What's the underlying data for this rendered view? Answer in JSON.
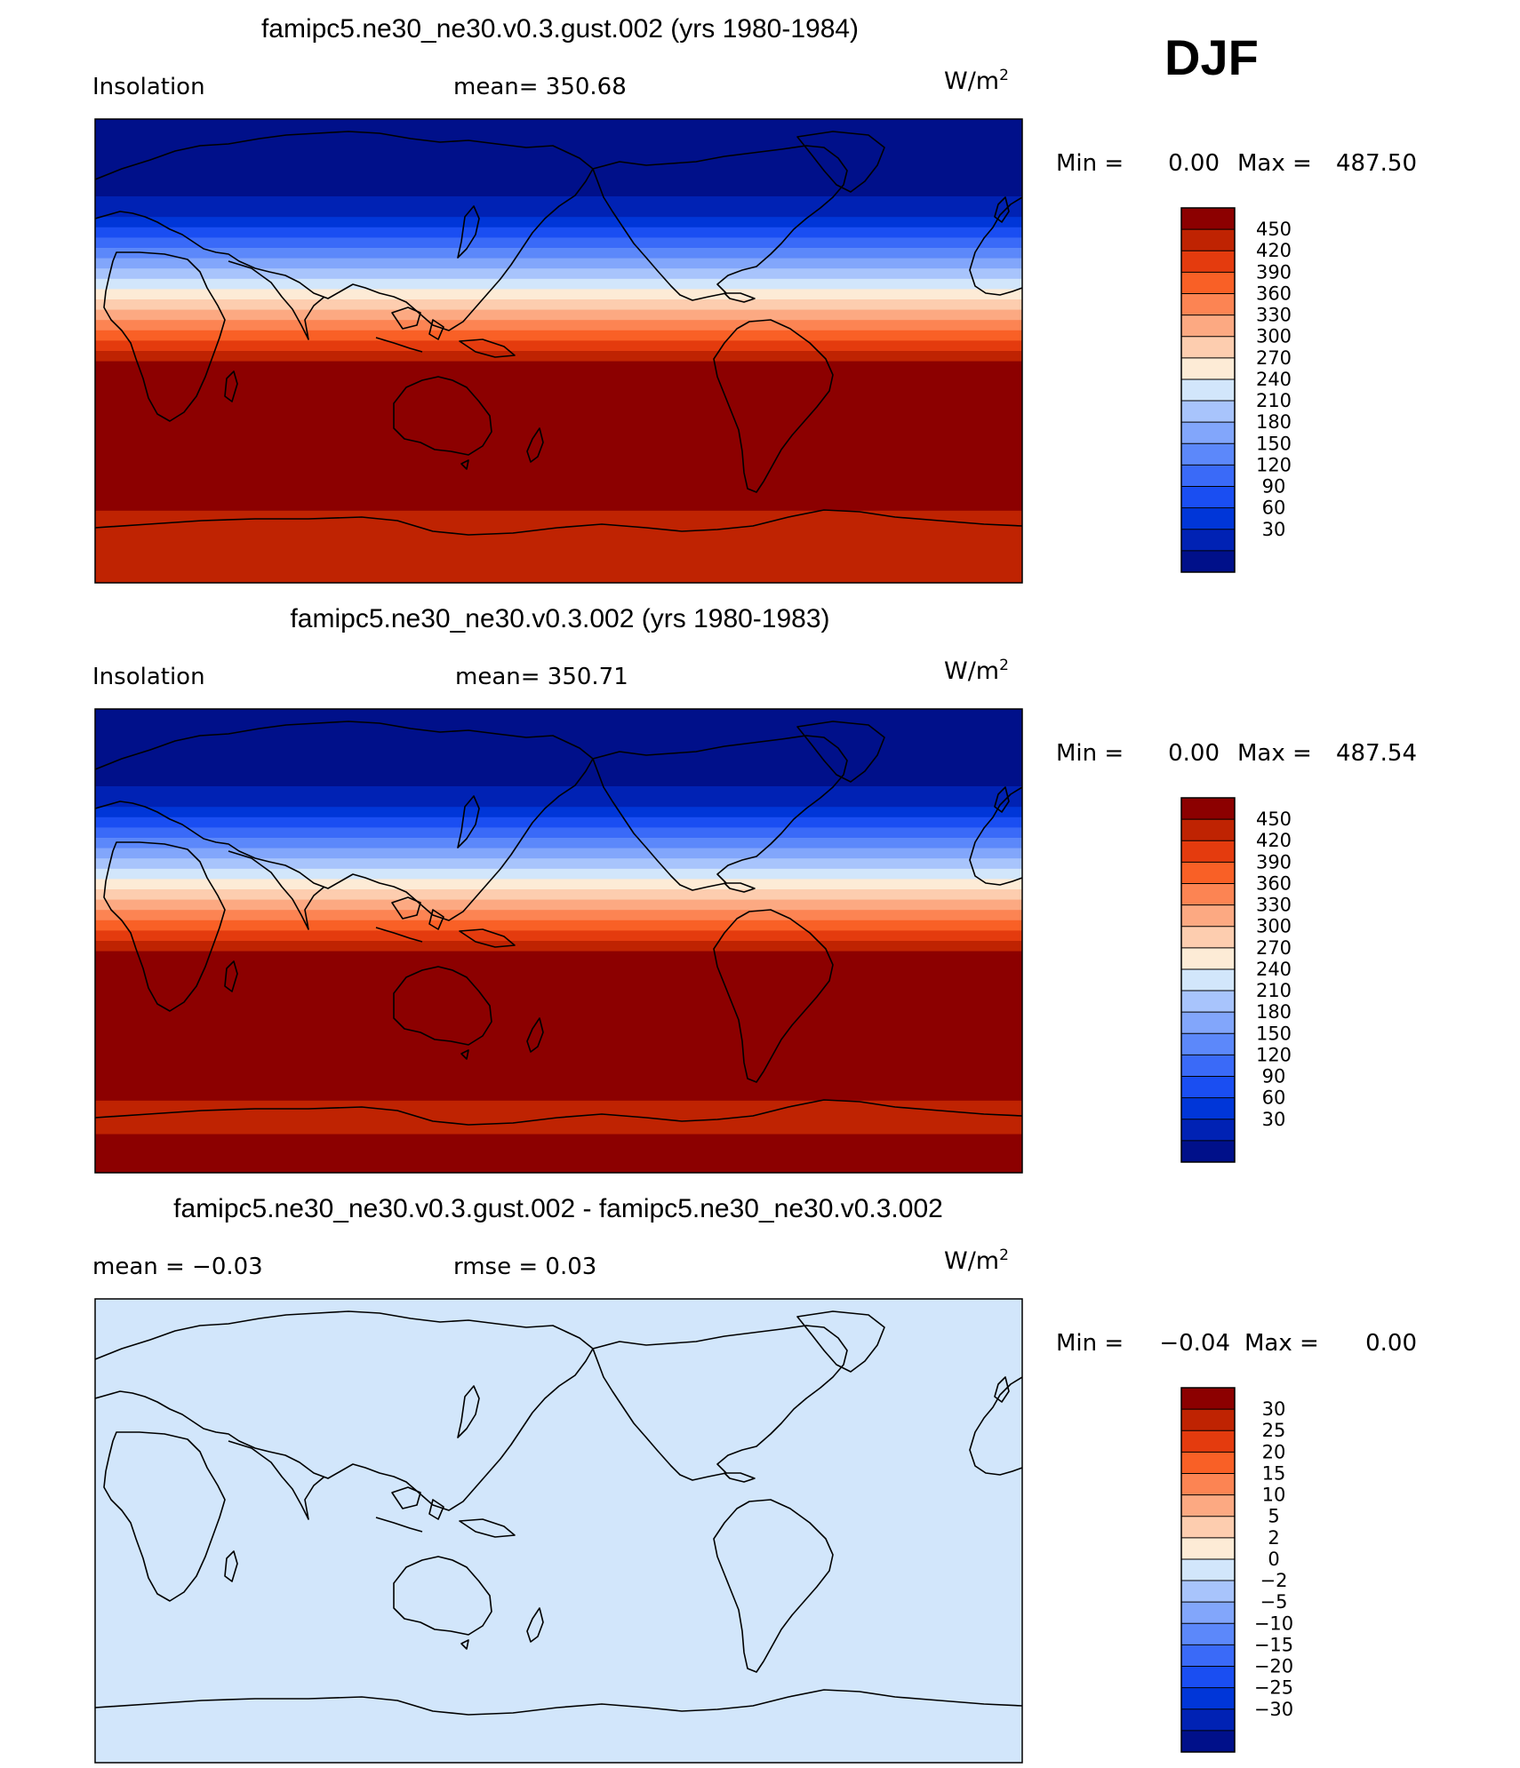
{
  "season_label": "DJF",
  "chart_data": [
    {
      "type": "heatmap",
      "title": "famipc5.ne30_ne30.v0.3.gust.002 (yrs 1980-1984)",
      "variable": "Insolation",
      "mean_text": "mean=  350.68",
      "units": "W/m",
      "units_exp": "2",
      "min_label": "Min  =",
      "min_value": "0.00",
      "max_label": "Max  =",
      "max_value": "487.50",
      "colorbar": {
        "colors": [
          "#00108a",
          "#0022b4",
          "#0036d8",
          "#1a4ef2",
          "#3a6af8",
          "#5c88fa",
          "#82a6fb",
          "#a8c4fc",
          "#d2e6fb",
          "#fdebd6",
          "#fdcdaf",
          "#fca982",
          "#fc8453",
          "#f96026",
          "#e43b0e",
          "#bf2302",
          "#8c0000"
        ],
        "levels": [
          "450",
          "420",
          "390",
          "360",
          "330",
          "300",
          "270",
          "240",
          "210",
          "180",
          "150",
          "120",
          "90",
          "60",
          "30"
        ]
      },
      "lat_bands": [
        {
          "lat": [
            60,
            90
          ],
          "color": "#00108a"
        },
        {
          "lat": [
            52,
            60
          ],
          "color": "#0022b4"
        },
        {
          "lat": [
            48,
            52
          ],
          "color": "#0036d8"
        },
        {
          "lat": [
            44,
            48
          ],
          "color": "#1a4ef2"
        },
        {
          "lat": [
            40,
            44
          ],
          "color": "#3a6af8"
        },
        {
          "lat": [
            36,
            40
          ],
          "color": "#5c88fa"
        },
        {
          "lat": [
            32,
            36
          ],
          "color": "#82a6fb"
        },
        {
          "lat": [
            28,
            32
          ],
          "color": "#a8c4fc"
        },
        {
          "lat": [
            24,
            28
          ],
          "color": "#d2e6fb"
        },
        {
          "lat": [
            20,
            24
          ],
          "color": "#fdebd6"
        },
        {
          "lat": [
            16,
            20
          ],
          "color": "#fdcdaf"
        },
        {
          "lat": [
            12,
            16
          ],
          "color": "#fca982"
        },
        {
          "lat": [
            8,
            12
          ],
          "color": "#fc8453"
        },
        {
          "lat": [
            4,
            8
          ],
          "color": "#f96026"
        },
        {
          "lat": [
            0,
            4
          ],
          "color": "#e43b0e"
        },
        {
          "lat": [
            -4,
            0
          ],
          "color": "#bf2302"
        },
        {
          "lat": [
            -62,
            -4
          ],
          "color": "#8c0000"
        },
        {
          "lat": [
            -90,
            -62
          ],
          "color": "#bf2302"
        }
      ]
    },
    {
      "type": "heatmap",
      "title": "famipc5.ne30_ne30.v0.3.002 (yrs 1980-1983)",
      "variable": "Insolation",
      "mean_text": "mean=  350.71",
      "units": "W/m",
      "units_exp": "2",
      "min_label": "Min  =",
      "min_value": "0.00",
      "max_label": "Max  =",
      "max_value": "487.54",
      "colorbar": {
        "colors": [
          "#00108a",
          "#0022b4",
          "#0036d8",
          "#1a4ef2",
          "#3a6af8",
          "#5c88fa",
          "#82a6fb",
          "#a8c4fc",
          "#d2e6fb",
          "#fdebd6",
          "#fdcdaf",
          "#fca982",
          "#fc8453",
          "#f96026",
          "#e43b0e",
          "#bf2302",
          "#8c0000"
        ],
        "levels": [
          "450",
          "420",
          "390",
          "360",
          "330",
          "300",
          "270",
          "240",
          "210",
          "180",
          "150",
          "120",
          "90",
          "60",
          "30"
        ]
      },
      "lat_bands": [
        {
          "lat": [
            60,
            90
          ],
          "color": "#00108a"
        },
        {
          "lat": [
            52,
            60
          ],
          "color": "#0022b4"
        },
        {
          "lat": [
            48,
            52
          ],
          "color": "#0036d8"
        },
        {
          "lat": [
            44,
            48
          ],
          "color": "#1a4ef2"
        },
        {
          "lat": [
            40,
            44
          ],
          "color": "#3a6af8"
        },
        {
          "lat": [
            36,
            40
          ],
          "color": "#5c88fa"
        },
        {
          "lat": [
            32,
            36
          ],
          "color": "#82a6fb"
        },
        {
          "lat": [
            28,
            32
          ],
          "color": "#a8c4fc"
        },
        {
          "lat": [
            24,
            28
          ],
          "color": "#d2e6fb"
        },
        {
          "lat": [
            20,
            24
          ],
          "color": "#fdebd6"
        },
        {
          "lat": [
            16,
            20
          ],
          "color": "#fdcdaf"
        },
        {
          "lat": [
            12,
            16
          ],
          "color": "#fca982"
        },
        {
          "lat": [
            8,
            12
          ],
          "color": "#fc8453"
        },
        {
          "lat": [
            4,
            8
          ],
          "color": "#f96026"
        },
        {
          "lat": [
            0,
            4
          ],
          "color": "#e43b0e"
        },
        {
          "lat": [
            -4,
            0
          ],
          "color": "#bf2302"
        },
        {
          "lat": [
            -62,
            -4
          ],
          "color": "#8c0000"
        },
        {
          "lat": [
            -75,
            -62
          ],
          "color": "#bf2302"
        },
        {
          "lat": [
            -90,
            -75
          ],
          "color": "#8c0000"
        }
      ]
    },
    {
      "type": "heatmap",
      "title": "famipc5.ne30_ne30.v0.3.gust.002 - famipc5.ne30_ne30.v0.3.002",
      "mean_text": "mean  =   −0.03",
      "rmse_text": "rmse  =     0.03",
      "units": "W/m",
      "units_exp": "2",
      "min_label": "Min  =",
      "min_value": "−0.04",
      "max_label": "Max  =",
      "max_value": "0.00",
      "colorbar": {
        "colors": [
          "#00108a",
          "#0022b4",
          "#0036d8",
          "#1a4ef2",
          "#3a6af8",
          "#5c88fa",
          "#82a6fb",
          "#a8c4fc",
          "#d2e6fb",
          "#fdebd6",
          "#fdcdaf",
          "#fca982",
          "#fc8453",
          "#f96026",
          "#e43b0e",
          "#bf2302",
          "#8c0000"
        ],
        "levels": [
          "30",
          "25",
          "20",
          "15",
          "10",
          "5",
          "2",
          "0",
          "−2",
          "−5",
          "−10",
          "−15",
          "−20",
          "−25",
          "−30"
        ]
      },
      "lat_bands": [
        {
          "lat": [
            -90,
            90
          ],
          "color": "#d2e6fb"
        }
      ]
    }
  ]
}
